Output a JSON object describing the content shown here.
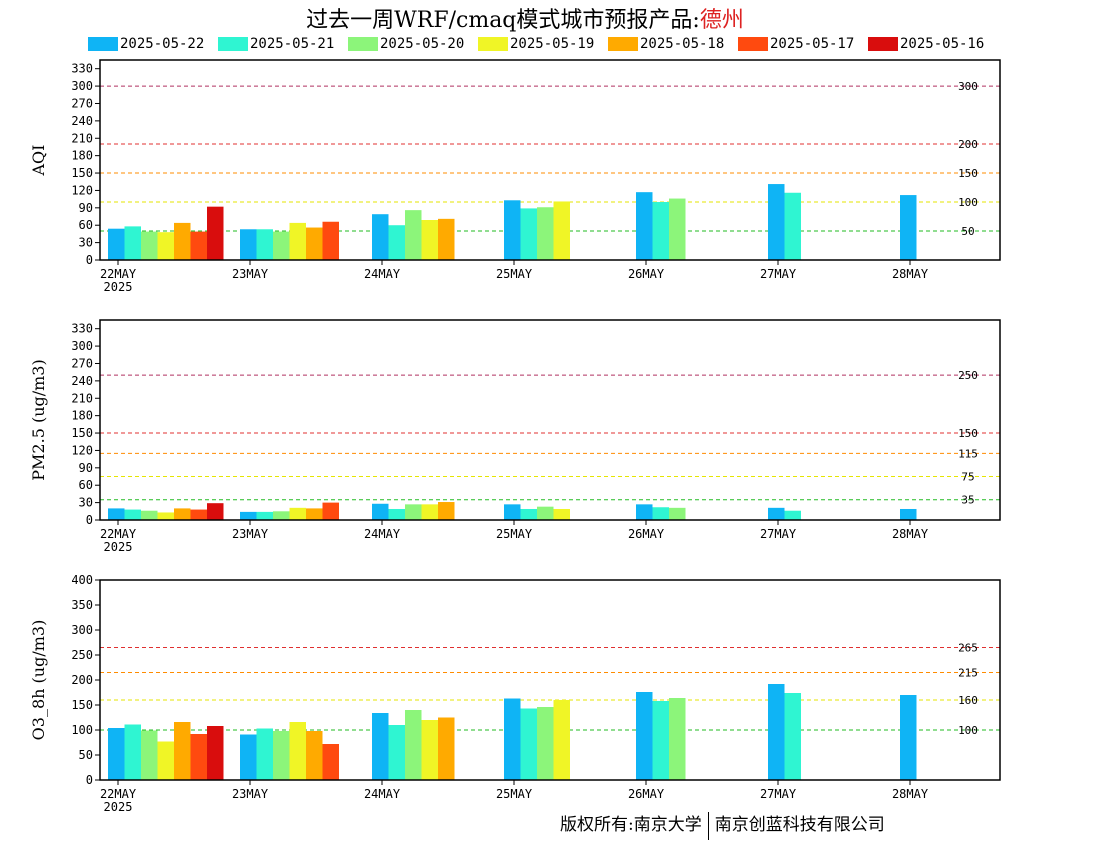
{
  "header": {
    "title": "过去一周WRF/cmaq模式城市预报产品:",
    "city": "德州"
  },
  "legend": [
    {
      "label": "2025-05-22",
      "color": "#0fb4f5"
    },
    {
      "label": "2025-05-21",
      "color": "#2ff5d2"
    },
    {
      "label": "2025-05-20",
      "color": "#8cf57a"
    },
    {
      "label": "2025-05-19",
      "color": "#f0f526"
    },
    {
      "label": "2025-05-18",
      "color": "#ffaa00"
    },
    {
      "label": "2025-05-17",
      "color": "#ff4a0f"
    },
    {
      "label": "2025-05-16",
      "color": "#d90d0d"
    }
  ],
  "footer": {
    "left": "版权所有:南京大学",
    "right": "南京创蓝科技有限公司"
  },
  "chart_data": [
    {
      "type": "bar",
      "ylabel": "AQI",
      "ylim": [
        0,
        345
      ],
      "yticks": [
        0,
        30,
        60,
        90,
        120,
        150,
        180,
        210,
        240,
        270,
        300,
        330
      ],
      "categories": [
        "22MAY",
        "23MAY",
        "24MAY",
        "25MAY",
        "26MAY",
        "27MAY",
        "28MAY"
      ],
      "year_label": "2025",
      "reference_lines": [
        {
          "value": 300,
          "label": "300",
          "color": "#b03060"
        },
        {
          "value": 200,
          "label": "200",
          "color": "#e03030"
        },
        {
          "value": 150,
          "label": "150",
          "color": "#ff8c00"
        },
        {
          "value": 100,
          "label": "100",
          "color": "#e6e600"
        },
        {
          "value": 50,
          "label": "50",
          "color": "#22bb22"
        }
      ],
      "series": [
        {
          "name": "2025-05-22",
          "values": [
            54,
            53,
            79,
            103,
            117,
            131,
            112
          ]
        },
        {
          "name": "2025-05-21",
          "values": [
            58,
            53,
            60,
            89,
            100,
            116,
            null
          ]
        },
        {
          "name": "2025-05-20",
          "values": [
            49,
            49,
            86,
            91,
            106,
            null,
            null
          ]
        },
        {
          "name": "2025-05-19",
          "values": [
            48,
            64,
            69,
            101,
            null,
            null,
            null
          ]
        },
        {
          "name": "2025-05-18",
          "values": [
            64,
            56,
            71,
            null,
            null,
            null,
            null
          ]
        },
        {
          "name": "2025-05-17",
          "values": [
            49,
            66,
            null,
            null,
            null,
            null,
            null
          ]
        },
        {
          "name": "2025-05-16",
          "values": [
            92,
            null,
            null,
            null,
            null,
            null,
            null
          ]
        }
      ]
    },
    {
      "type": "bar",
      "ylabel": "PM2.5 (ug/m3)",
      "ylim": [
        0,
        345
      ],
      "yticks": [
        0,
        30,
        60,
        90,
        120,
        150,
        180,
        210,
        240,
        270,
        300,
        330
      ],
      "categories": [
        "22MAY",
        "23MAY",
        "24MAY",
        "25MAY",
        "26MAY",
        "27MAY",
        "28MAY"
      ],
      "year_label": "2025",
      "reference_lines": [
        {
          "value": 250,
          "label": "250",
          "color": "#b03060"
        },
        {
          "value": 150,
          "label": "150",
          "color": "#e03030"
        },
        {
          "value": 115,
          "label": "115",
          "color": "#ff8c00"
        },
        {
          "value": 75,
          "label": "75",
          "color": "#e6e600"
        },
        {
          "value": 35,
          "label": "35",
          "color": "#22bb22"
        }
      ],
      "series": [
        {
          "name": "2025-05-22",
          "values": [
            20,
            14,
            28,
            27,
            27,
            21,
            19
          ]
        },
        {
          "name": "2025-05-21",
          "values": [
            18,
            14,
            19,
            19,
            22,
            16,
            null
          ]
        },
        {
          "name": "2025-05-20",
          "values": [
            16,
            15,
            27,
            23,
            21,
            null,
            null
          ]
        },
        {
          "name": "2025-05-19",
          "values": [
            13,
            21,
            27,
            19,
            null,
            null,
            null
          ]
        },
        {
          "name": "2025-05-18",
          "values": [
            20,
            20,
            31,
            null,
            null,
            null,
            null
          ]
        },
        {
          "name": "2025-05-17",
          "values": [
            18,
            30,
            null,
            null,
            null,
            null,
            null
          ]
        },
        {
          "name": "2025-05-16",
          "values": [
            29,
            null,
            null,
            null,
            null,
            null,
            null
          ]
        }
      ]
    },
    {
      "type": "bar",
      "ylabel": "O3_8h (ug/m3)",
      "ylim": [
        0,
        400
      ],
      "yticks": [
        0,
        50,
        100,
        150,
        200,
        250,
        300,
        350,
        400
      ],
      "categories": [
        "22MAY",
        "23MAY",
        "24MAY",
        "25MAY",
        "26MAY",
        "27MAY",
        "28MAY"
      ],
      "year_label": "2025",
      "reference_lines": [
        {
          "value": 265,
          "label": "265",
          "color": "#e03030"
        },
        {
          "value": 215,
          "label": "215",
          "color": "#ff8c00"
        },
        {
          "value": 160,
          "label": "160",
          "color": "#e6e600"
        },
        {
          "value": 100,
          "label": "100",
          "color": "#22bb22"
        }
      ],
      "series": [
        {
          "name": "2025-05-22",
          "values": [
            104,
            91,
            134,
            163,
            176,
            192,
            170
          ]
        },
        {
          "name": "2025-05-21",
          "values": [
            111,
            103,
            110,
            143,
            158,
            174,
            null
          ]
        },
        {
          "name": "2025-05-20",
          "values": [
            99,
            98,
            140,
            146,
            164,
            null,
            null
          ]
        },
        {
          "name": "2025-05-19",
          "values": [
            77,
            116,
            120,
            160,
            null,
            null,
            null
          ]
        },
        {
          "name": "2025-05-18",
          "values": [
            116,
            98,
            125,
            null,
            null,
            null,
            null
          ]
        },
        {
          "name": "2025-05-17",
          "values": [
            92,
            72,
            null,
            null,
            null,
            null,
            null
          ]
        },
        {
          "name": "2025-05-16",
          "values": [
            108,
            null,
            null,
            null,
            null,
            null,
            null
          ]
        }
      ]
    }
  ]
}
